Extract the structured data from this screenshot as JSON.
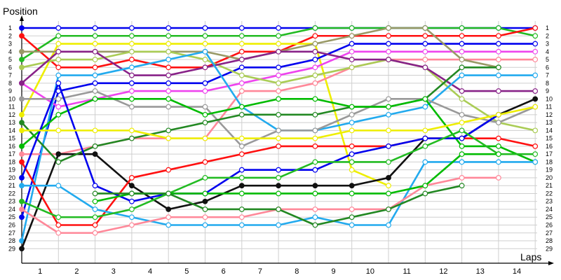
{
  "chart_data": {
    "type": "line",
    "title": "",
    "ylabel": "Position",
    "xlabel": "Laps",
    "x": [
      0,
      1,
      2,
      3,
      4,
      5,
      6,
      7,
      8,
      9,
      10,
      11,
      12,
      13,
      14
    ],
    "x_tick_labels": [
      "1",
      "2",
      "3",
      "4",
      "5",
      "6",
      "7",
      "8",
      "9",
      "10",
      "11",
      "12",
      "13",
      "14"
    ],
    "y_tick_labels": [
      "1",
      "2",
      "3",
      "4",
      "5",
      "6",
      "7",
      "8",
      "9",
      "10",
      "11",
      "12",
      "13",
      "14",
      "15",
      "16",
      "17",
      "18",
      "19",
      "20",
      "21",
      "22",
      "23",
      "24",
      "25",
      "26",
      "27",
      "28",
      "29"
    ],
    "ylim": [
      1,
      29
    ],
    "y_inverted": true,
    "grid": true,
    "series": [
      {
        "color": "#0000ee",
        "values": [
          1,
          1,
          1,
          1,
          1,
          1,
          1,
          1,
          1,
          1,
          1,
          1,
          1,
          1,
          1
        ]
      },
      {
        "color": "#22bb22",
        "values": [
          5,
          2,
          2,
          2,
          2,
          2,
          2,
          2,
          1,
          1,
          1,
          1,
          1,
          1,
          2
        ]
      },
      {
        "color": "#ff1010",
        "values": [
          2,
          6,
          6,
          5,
          6,
          6,
          4,
          4,
          2,
          2,
          2,
          2,
          2,
          2,
          1
        ]
      },
      {
        "color": "#eeee00",
        "values": [
          12,
          3,
          3,
          3,
          3,
          3,
          3,
          3,
          3,
          19,
          21,
          null,
          null,
          null,
          null
        ]
      },
      {
        "color": "#0000ee",
        "values": [
          25,
          9,
          8,
          8,
          8,
          8,
          6,
          6,
          5,
          3,
          3,
          3,
          3,
          3,
          3
        ]
      },
      {
        "color": "#ee44ee",
        "values": [
          8,
          11,
          10,
          9,
          9,
          9,
          8,
          7,
          6,
          4,
          4,
          4,
          4,
          4,
          4
        ]
      },
      {
        "color": "#ff8899",
        "values": [
          17,
          17,
          16,
          15,
          15,
          15,
          9,
          9,
          8,
          6,
          5,
          5,
          5,
          5,
          5
        ]
      },
      {
        "color": "#999966",
        "values": [
          4,
          4,
          4,
          4,
          4,
          4,
          5,
          4,
          3,
          2,
          1,
          1,
          5,
          6,
          null
        ]
      },
      {
        "color": "#aacc55",
        "values": [
          6,
          5,
          5,
          4,
          4,
          5,
          7,
          8,
          7,
          6,
          5,
          6,
          10,
          13,
          14
        ]
      },
      {
        "color": "#882288",
        "values": [
          8,
          4,
          4,
          7,
          7,
          6,
          5,
          4,
          4,
          5,
          5,
          6,
          9,
          9,
          9
        ]
      },
      {
        "color": "#22aaee",
        "values": [
          28,
          7,
          7,
          6,
          5,
          4,
          11,
          14,
          14,
          13,
          12,
          11,
          7,
          7,
          7
        ]
      },
      {
        "color": "#111111",
        "values": [
          29,
          17,
          17,
          21,
          24,
          23,
          21,
          21,
          21,
          21,
          20,
          15,
          15,
          12,
          10
        ]
      },
      {
        "color": "#999999",
        "values": [
          10,
          10,
          9,
          11,
          11,
          11,
          16,
          14,
          14,
          12,
          10,
          10,
          12,
          13,
          11
        ]
      },
      {
        "color": "#228822",
        "values": [
          13,
          18,
          16,
          15,
          14,
          13,
          12,
          12,
          12,
          11,
          11,
          10,
          6,
          6,
          null
        ]
      },
      {
        "color": "#00bb00",
        "values": [
          16,
          12,
          10,
          10,
          10,
          12,
          11,
          10,
          10,
          11,
          11,
          10,
          16,
          16,
          18
        ]
      },
      {
        "color": "#ff1010",
        "values": [
          18,
          26,
          26,
          20,
          19,
          18,
          17,
          16,
          16,
          16,
          16,
          15,
          15,
          15,
          16
        ]
      },
      {
        "color": "#0000ee",
        "values": [
          20,
          8,
          21,
          23,
          22,
          22,
          19,
          19,
          19,
          17,
          16,
          15,
          15,
          12,
          null
        ]
      },
      {
        "color": "#eeee00",
        "values": [
          14,
          14,
          14,
          14,
          15,
          15,
          15,
          15,
          15,
          14,
          14,
          14,
          13,
          12,
          11
        ]
      },
      {
        "color": "#22aaee",
        "values": [
          21,
          21,
          24,
          25,
          26,
          26,
          26,
          26,
          25,
          26,
          26,
          18,
          18,
          18,
          18
        ]
      },
      {
        "color": "#22bb22",
        "values": [
          23,
          25,
          25,
          24,
          22,
          20,
          20,
          20,
          18,
          18,
          18,
          16,
          14,
          17,
          17
        ]
      },
      {
        "color": "#ff8899",
        "values": [
          24,
          27,
          27,
          26,
          25,
          25,
          25,
          24,
          24,
          24,
          24,
          21,
          20,
          20,
          null
        ]
      },
      {
        "color": "#00bb00",
        "values": [
          null,
          null,
          23,
          22,
          22,
          22,
          22,
          22,
          22,
          22,
          22,
          21,
          17,
          17,
          null
        ]
      },
      {
        "color": "#228822",
        "values": [
          null,
          null,
          22,
          22,
          22,
          24,
          24,
          24,
          26,
          25,
          24,
          22,
          21,
          null,
          null
        ]
      }
    ]
  }
}
